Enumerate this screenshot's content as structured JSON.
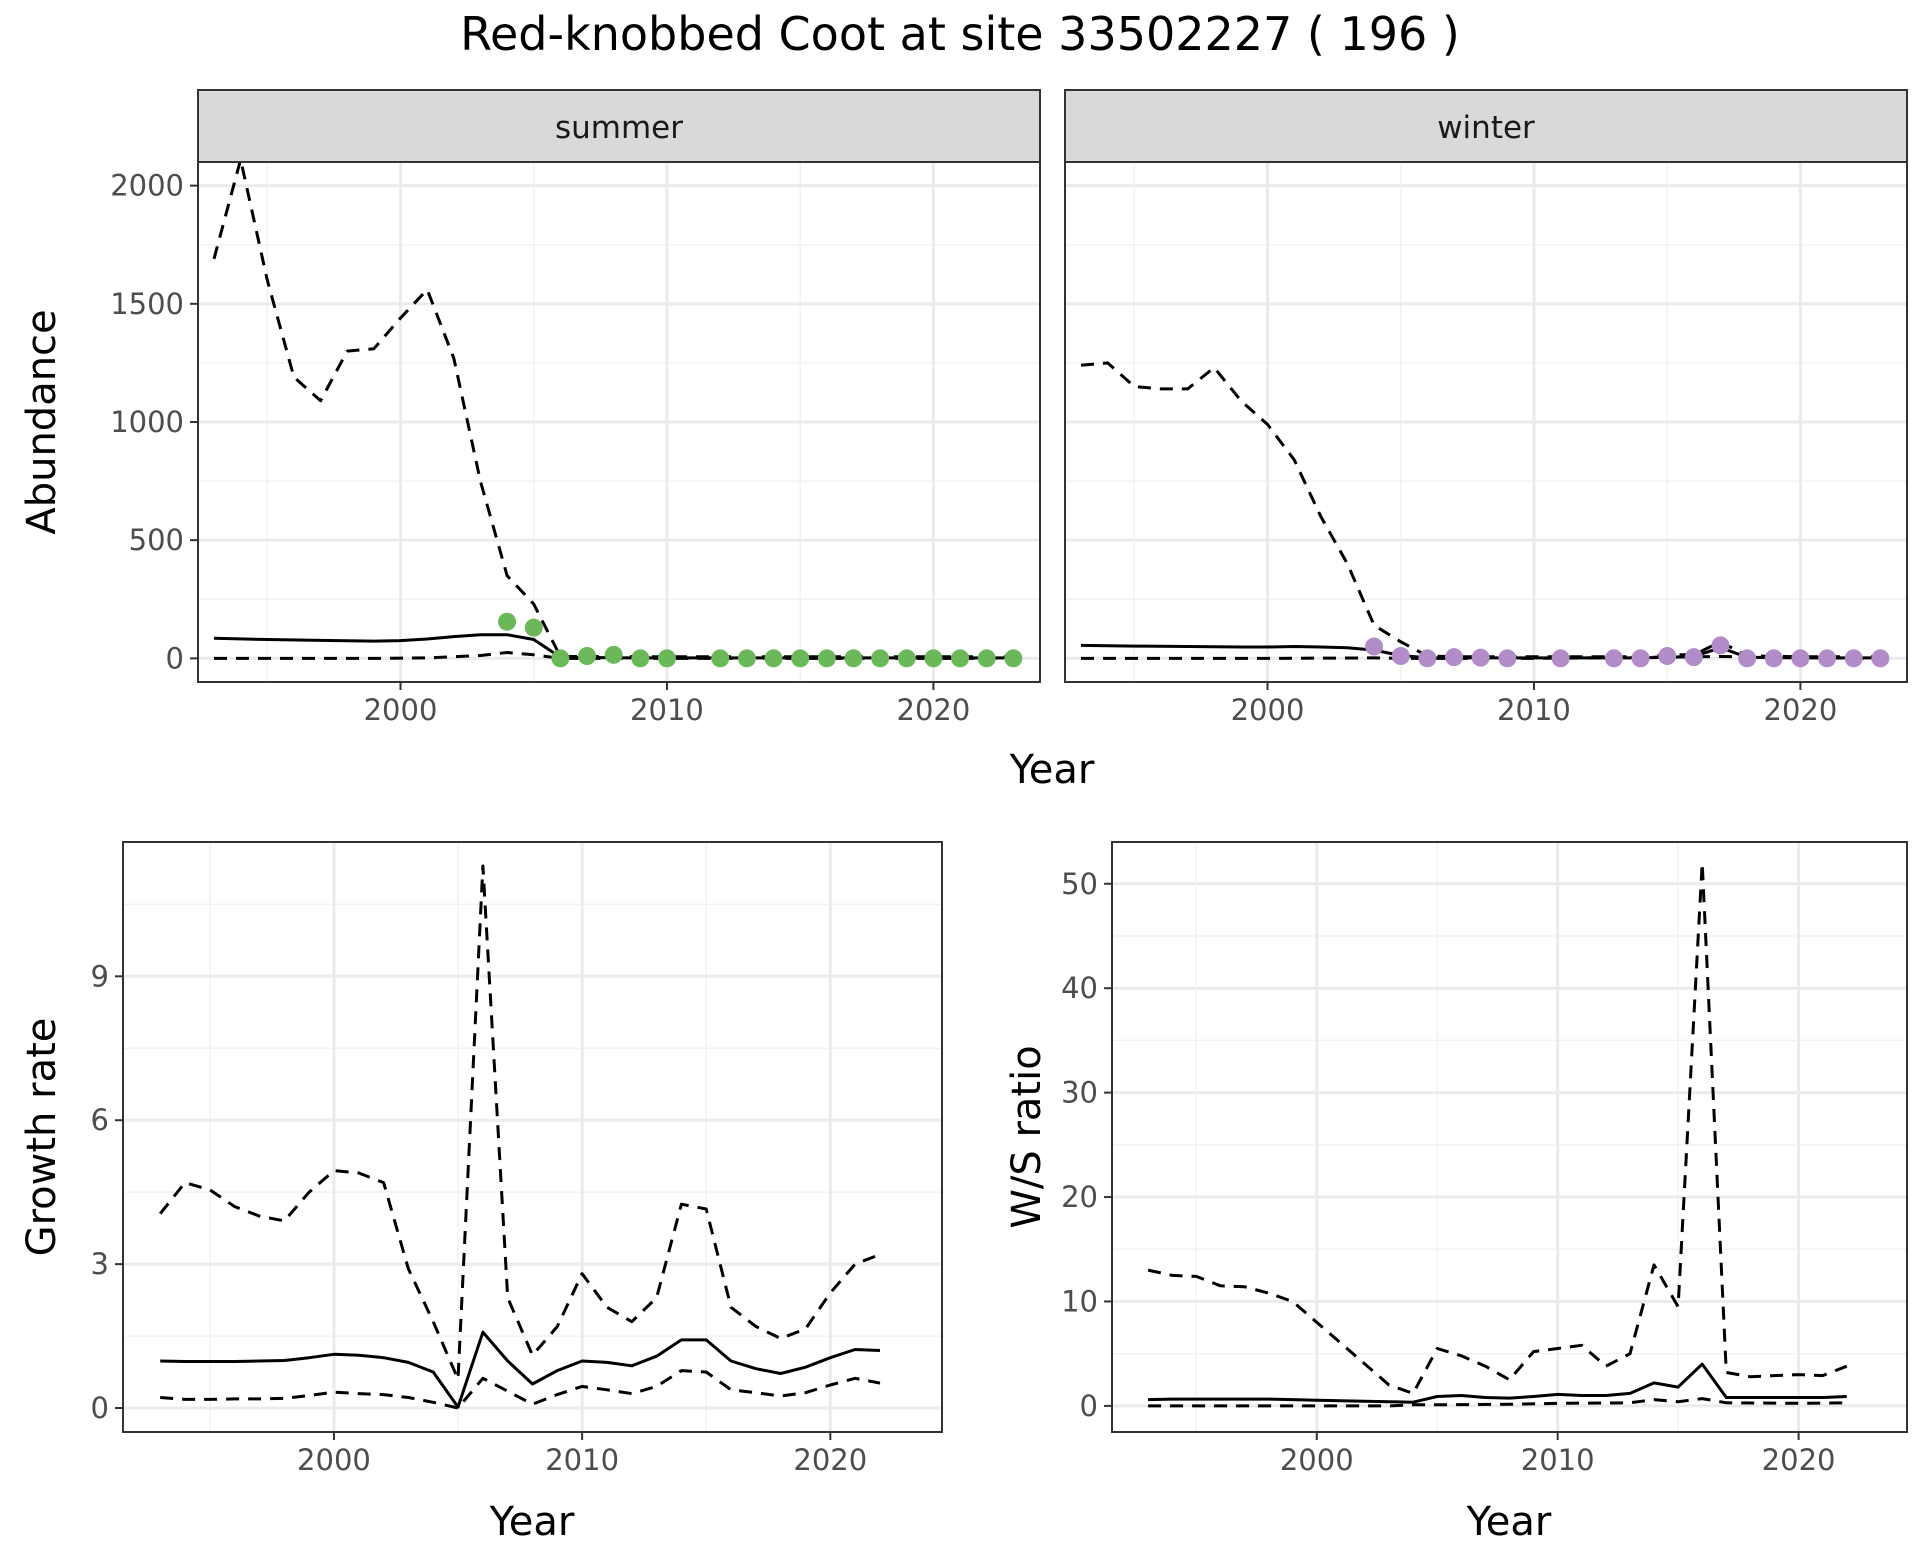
{
  "title": "Red-knobbed Coot at site 33502227 ( 196 )",
  "colors": {
    "summer_points": "#6ab857",
    "winter_points": "#b28cc8"
  },
  "chart_data": [
    {
      "id": "abundance-summer",
      "type": "line",
      "facet": "summer",
      "xlabel": "Year",
      "ylabel": "Abundance",
      "xlim": [
        1992.4,
        2024.0
      ],
      "ylim": [
        -100,
        2100
      ],
      "xticks": [
        2000,
        2010,
        2020
      ],
      "yticks": [
        0,
        500,
        1000,
        1500,
        2000
      ],
      "series": [
        {
          "role": "estimate",
          "style": "solid",
          "x": [
            1993,
            1995,
            1997,
            1999,
            2000,
            2001,
            2002,
            2003,
            2004,
            2005,
            2006,
            2007,
            2008,
            2009,
            2010,
            2011,
            2012,
            2013,
            2014,
            2015,
            2016,
            2017,
            2018,
            2019,
            2020,
            2021,
            2022,
            2023
          ],
          "y": [
            85,
            80,
            76,
            73,
            75,
            82,
            92,
            100,
            100,
            80,
            5,
            4,
            3,
            2,
            2,
            2,
            2,
            2,
            2,
            2,
            2,
            2,
            2,
            2,
            2,
            2,
            2,
            2
          ]
        },
        {
          "role": "upper",
          "style": "dashed",
          "x": [
            1993,
            1994,
            1995,
            1996,
            1997,
            1998,
            1999,
            2000,
            2001,
            2002,
            2003,
            2004,
            2005,
            2006,
            2007,
            2008,
            2009,
            2010,
            2011,
            2012,
            2013,
            2014,
            2015,
            2016,
            2017,
            2018,
            2019,
            2020,
            2021,
            2022,
            2023
          ],
          "y": [
            1690,
            2110,
            1600,
            1190,
            1090,
            1300,
            1310,
            1440,
            1560,
            1270,
            750,
            350,
            230,
            8,
            8,
            8,
            7,
            7,
            7,
            7,
            7,
            7,
            7,
            7,
            7,
            7,
            7,
            7,
            7,
            7,
            7
          ]
        },
        {
          "role": "lower",
          "style": "dashed",
          "x": [
            1993,
            1995,
            1997,
            1999,
            2001,
            2003,
            2004,
            2005,
            2006,
            2010,
            2015,
            2020,
            2023
          ],
          "y": [
            0,
            0,
            0,
            0,
            2,
            12,
            25,
            15,
            0,
            0,
            0,
            0,
            0
          ]
        }
      ],
      "points": {
        "x": [
          2004,
          2005,
          2006,
          2007,
          2008,
          2009,
          2010,
          2012,
          2013,
          2014,
          2015,
          2016,
          2017,
          2018,
          2019,
          2020,
          2021,
          2022,
          2023
        ],
        "y": [
          155,
          130,
          0,
          10,
          15,
          0,
          0,
          0,
          0,
          0,
          0,
          0,
          0,
          0,
          0,
          0,
          0,
          0,
          0
        ]
      }
    },
    {
      "id": "abundance-winter",
      "type": "line",
      "facet": "winter",
      "xlabel": "Year",
      "ylabel": "Abundance",
      "xlim": [
        1992.4,
        2024.0
      ],
      "ylim": [
        -100,
        2100
      ],
      "xticks": [
        2000,
        2010,
        2020
      ],
      "yticks": [
        0,
        500,
        1000,
        1500,
        2000
      ],
      "series": [
        {
          "role": "estimate",
          "style": "solid",
          "x": [
            1993,
            1995,
            1997,
            1999,
            2000,
            2001,
            2002,
            2003,
            2004,
            2005,
            2006,
            2010,
            2014,
            2015,
            2016,
            2017,
            2018,
            2020,
            2023
          ],
          "y": [
            55,
            52,
            50,
            48,
            48,
            50,
            48,
            45,
            35,
            12,
            3,
            2,
            2,
            5,
            8,
            45,
            5,
            2,
            2
          ]
        },
        {
          "role": "upper",
          "style": "dashed",
          "x": [
            1993,
            1994,
            1995,
            1996,
            1997,
            1998,
            1999,
            2000,
            2001,
            2002,
            2003,
            2004,
            2005,
            2006,
            2007,
            2010,
            2014,
            2015,
            2016,
            2017,
            2018,
            2020,
            2023
          ],
          "y": [
            1240,
            1250,
            1150,
            1140,
            1140,
            1230,
            1090,
            990,
            840,
            600,
            400,
            140,
            70,
            10,
            7,
            7,
            7,
            15,
            15,
            70,
            10,
            7,
            7
          ]
        },
        {
          "role": "lower",
          "style": "dashed",
          "x": [
            1993,
            2000,
            2004,
            2005,
            2010,
            2017,
            2023
          ],
          "y": [
            0,
            0,
            2,
            0,
            0,
            8,
            0
          ]
        }
      ],
      "points": {
        "x": [
          2004,
          2005,
          2006,
          2007,
          2008,
          2009,
          2011,
          2013,
          2014,
          2015,
          2016,
          2017,
          2018,
          2019,
          2020,
          2021,
          2022,
          2023
        ],
        "y": [
          50,
          10,
          0,
          5,
          3,
          0,
          0,
          0,
          0,
          10,
          5,
          55,
          0,
          0,
          0,
          0,
          0,
          0
        ]
      }
    },
    {
      "id": "growth-rate",
      "type": "line",
      "xlabel": "Year",
      "ylabel": "Growth rate",
      "xlim": [
        1991.5,
        2024.5
      ],
      "ylim": [
        -0.5,
        11.8
      ],
      "xticks": [
        2000,
        2010,
        2020
      ],
      "yticks": [
        0,
        3,
        6,
        9
      ],
      "series": [
        {
          "role": "estimate",
          "style": "solid",
          "x": [
            1993,
            1994,
            1995,
            1996,
            1997,
            1998,
            1999,
            2000,
            2001,
            2002,
            2003,
            2004,
            2005,
            2006,
            2007,
            2008,
            2009,
            2010,
            2011,
            2012,
            2013,
            2014,
            2015,
            2016,
            2017,
            2018,
            2019,
            2020,
            2021,
            2022
          ],
          "y": [
            0.98,
            0.97,
            0.97,
            0.97,
            0.98,
            0.99,
            1.05,
            1.12,
            1.1,
            1.05,
            0.95,
            0.75,
            0.02,
            1.58,
            0.98,
            0.5,
            0.78,
            0.98,
            0.95,
            0.88,
            1.08,
            1.42,
            1.42,
            0.98,
            0.82,
            0.72,
            0.85,
            1.05,
            1.22,
            1.2
          ]
        },
        {
          "role": "upper",
          "style": "dashed",
          "x": [
            1993,
            1994,
            1995,
            1996,
            1997,
            1998,
            1999,
            2000,
            2001,
            2002,
            2003,
            2004,
            2005,
            2006,
            2007,
            2008,
            2009,
            2010,
            2011,
            2012,
            2013,
            2014,
            2015,
            2016,
            2017,
            2018,
            2019,
            2020,
            2021,
            2022
          ],
          "y": [
            4.05,
            4.7,
            4.55,
            4.2,
            4.0,
            3.9,
            4.5,
            4.95,
            4.9,
            4.7,
            2.9,
            1.8,
            0.6,
            11.3,
            2.3,
            1.1,
            1.7,
            2.8,
            2.1,
            1.8,
            2.3,
            4.25,
            4.15,
            2.1,
            1.7,
            1.45,
            1.65,
            2.4,
            3.0,
            3.2
          ]
        },
        {
          "role": "lower",
          "style": "dashed",
          "x": [
            1993,
            1994,
            1995,
            1996,
            1997,
            1998,
            1999,
            2000,
            2001,
            2002,
            2003,
            2004,
            2005,
            2006,
            2007,
            2008,
            2009,
            2010,
            2011,
            2012,
            2013,
            2014,
            2015,
            2016,
            2017,
            2018,
            2019,
            2020,
            2021,
            2022
          ],
          "y": [
            0.22,
            0.18,
            0.18,
            0.19,
            0.19,
            0.2,
            0.26,
            0.33,
            0.3,
            0.28,
            0.22,
            0.12,
            0.0,
            0.62,
            0.35,
            0.08,
            0.28,
            0.45,
            0.38,
            0.3,
            0.45,
            0.78,
            0.75,
            0.38,
            0.32,
            0.25,
            0.32,
            0.48,
            0.62,
            0.52
          ]
        }
      ]
    },
    {
      "id": "ws-ratio",
      "type": "line",
      "xlabel": "Year",
      "ylabel": "W/S ratio",
      "xlim": [
        1991.5,
        2024.5
      ],
      "ylim": [
        -2.5,
        54
      ],
      "xticks": [
        2000,
        2010,
        2020
      ],
      "yticks": [
        0,
        10,
        20,
        30,
        40,
        50
      ],
      "series": [
        {
          "role": "estimate",
          "style": "solid",
          "x": [
            1993,
            1994,
            1995,
            1996,
            1997,
            1998,
            1999,
            2000,
            2001,
            2002,
            2003,
            2004,
            2005,
            2006,
            2007,
            2008,
            2009,
            2010,
            2011,
            2012,
            2013,
            2014,
            2015,
            2016,
            2017,
            2018,
            2019,
            2020,
            2021,
            2022
          ],
          "y": [
            0.6,
            0.65,
            0.65,
            0.65,
            0.65,
            0.65,
            0.6,
            0.55,
            0.5,
            0.45,
            0.4,
            0.35,
            0.9,
            1.0,
            0.8,
            0.75,
            0.9,
            1.1,
            1.0,
            1.0,
            1.2,
            2.2,
            1.8,
            4.0,
            0.8,
            0.8,
            0.8,
            0.8,
            0.8,
            0.9
          ]
        },
        {
          "role": "upper",
          "style": "dashed",
          "x": [
            1993,
            1994,
            1995,
            1996,
            1997,
            1998,
            1999,
            2000,
            2001,
            2002,
            2003,
            2004,
            2005,
            2006,
            2007,
            2008,
            2009,
            2010,
            2011,
            2012,
            2013,
            2014,
            2015,
            2016,
            2017,
            2018,
            2019,
            2020,
            2021,
            2022
          ],
          "y": [
            13.0,
            12.5,
            12.4,
            11.5,
            11.4,
            10.8,
            10.0,
            8.0,
            6.0,
            4.0,
            2.0,
            1.2,
            5.5,
            4.8,
            3.8,
            2.5,
            5.2,
            5.5,
            5.8,
            3.8,
            5.0,
            13.5,
            9.5,
            52.0,
            3.2,
            2.8,
            2.9,
            3.0,
            2.9,
            3.8
          ]
        },
        {
          "role": "lower",
          "style": "dashed",
          "x": [
            1993,
            1995,
            1997,
            2000,
            2003,
            2004,
            2005,
            2008,
            2010,
            2013,
            2014,
            2015,
            2016,
            2017,
            2020,
            2022
          ],
          "y": [
            0.0,
            0.0,
            0.0,
            0.0,
            0.0,
            0.1,
            0.1,
            0.15,
            0.25,
            0.3,
            0.6,
            0.4,
            0.7,
            0.3,
            0.25,
            0.3
          ]
        }
      ]
    }
  ]
}
